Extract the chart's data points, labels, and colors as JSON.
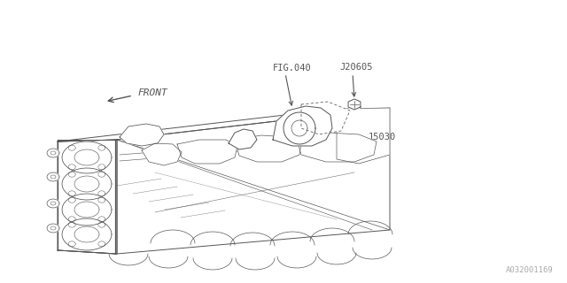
{
  "bg_color": "#ffffff",
  "line_color": "#555555",
  "text_color": "#555555",
  "fig_id": "FIG.040",
  "part1": "J20605",
  "part2": "15030",
  "watermark": "A032001169",
  "front_label": "FRONT",
  "lw": 0.7,
  "figsize": [
    6.4,
    3.2
  ],
  "dpi": 100
}
